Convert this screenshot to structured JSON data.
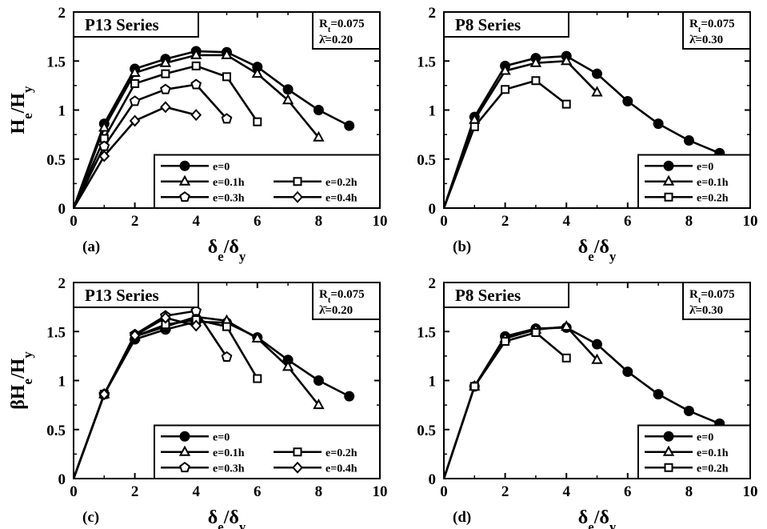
{
  "chart_data": [
    {
      "panel": "(a)",
      "type": "line",
      "title": "P13  Series",
      "params": {
        "rt": "0.075",
        "lambda": "0.20"
      },
      "xlabel": "δe/δy",
      "ylabel": "He/Hy",
      "xlim": [
        0,
        10
      ],
      "ylim": [
        0,
        2
      ],
      "x_ticks": [
        0,
        2,
        4,
        6,
        8,
        10
      ],
      "y_ticks": [
        0,
        0.5,
        1,
        1.5,
        2
      ],
      "legend": {
        "placement": "bottom-right",
        "columns": 2
      },
      "series": [
        {
          "name": "e=0",
          "marker": "circle",
          "fill": "filled",
          "x": [
            0,
            1,
            2,
            3,
            4,
            5,
            6,
            7,
            8,
            9
          ],
          "y": [
            0,
            0.86,
            1.42,
            1.52,
            1.6,
            1.59,
            1.44,
            1.21,
            1.0,
            0.84
          ]
        },
        {
          "name": "e=0.1h",
          "marker": "triangle",
          "fill": "open",
          "x": [
            0,
            1,
            2,
            3,
            4,
            5,
            6,
            7,
            8
          ],
          "y": [
            0,
            0.82,
            1.38,
            1.48,
            1.56,
            1.56,
            1.37,
            1.1,
            0.72
          ]
        },
        {
          "name": "e=0.2h",
          "marker": "square",
          "fill": "open",
          "x": [
            0,
            1,
            2,
            3,
            4,
            5,
            6
          ],
          "y": [
            0,
            0.71,
            1.27,
            1.37,
            1.45,
            1.34,
            0.88
          ]
        },
        {
          "name": "e=0.3h",
          "marker": "pentagon",
          "fill": "open",
          "x": [
            0,
            1,
            2,
            3,
            4,
            5
          ],
          "y": [
            0,
            0.63,
            1.09,
            1.21,
            1.26,
            0.91
          ]
        },
        {
          "name": "e=0.4h",
          "marker": "diamond",
          "fill": "open",
          "x": [
            0,
            1,
            2,
            3,
            4
          ],
          "y": [
            0,
            0.53,
            0.89,
            1.03,
            0.95
          ]
        }
      ]
    },
    {
      "panel": "(b)",
      "type": "line",
      "title": "P8  Series",
      "params": {
        "rt": "0.075",
        "lambda": "0.30"
      },
      "xlabel": "δe/δy",
      "ylabel": "",
      "xlim": [
        0,
        10
      ],
      "ylim": [
        0,
        2
      ],
      "x_ticks": [
        0,
        2,
        4,
        6,
        8,
        10
      ],
      "y_ticks": [
        0,
        0.5,
        1,
        1.5,
        2
      ],
      "legend": {
        "placement": "bottom-right",
        "columns": 1
      },
      "series": [
        {
          "name": "e=0",
          "marker": "circle",
          "fill": "filled",
          "x": [
            0,
            1,
            2,
            3,
            4,
            5,
            6,
            7,
            8,
            9
          ],
          "y": [
            0,
            0.93,
            1.45,
            1.53,
            1.55,
            1.37,
            1.09,
            0.86,
            0.69,
            0.56
          ]
        },
        {
          "name": "e=0.1h",
          "marker": "triangle",
          "fill": "open",
          "x": [
            0,
            1,
            2,
            3,
            4,
            5
          ],
          "y": [
            0,
            0.9,
            1.4,
            1.48,
            1.5,
            1.18
          ]
        },
        {
          "name": "e=0.2h",
          "marker": "square",
          "fill": "open",
          "x": [
            0,
            1,
            2,
            3,
            4
          ],
          "y": [
            0,
            0.83,
            1.21,
            1.3,
            1.06
          ]
        }
      ]
    },
    {
      "panel": "(c)",
      "type": "line",
      "title": "P13  Series",
      "params": {
        "rt": "0.075",
        "lambda": "0.20"
      },
      "xlabel": "δe/δy",
      "ylabel": "βHe/Hy",
      "xlim": [
        0,
        10
      ],
      "ylim": [
        0,
        2
      ],
      "x_ticks": [
        0,
        2,
        4,
        6,
        8,
        10
      ],
      "y_ticks": [
        0,
        0.5,
        1,
        1.5,
        2
      ],
      "legend": {
        "placement": "bottom-right",
        "columns": 2
      },
      "series": [
        {
          "name": "e=0",
          "marker": "circle",
          "fill": "filled",
          "x": [
            0,
            1,
            2,
            3,
            4,
            5,
            6,
            7,
            8,
            9
          ],
          "y": [
            0,
            0.86,
            1.42,
            1.52,
            1.6,
            1.59,
            1.44,
            1.21,
            1.0,
            0.84
          ]
        },
        {
          "name": "e=0.1h",
          "marker": "triangle",
          "fill": "open",
          "x": [
            0,
            1,
            2,
            3,
            4,
            5,
            6,
            7,
            8
          ],
          "y": [
            0,
            0.86,
            1.45,
            1.55,
            1.65,
            1.61,
            1.43,
            1.14,
            0.75
          ]
        },
        {
          "name": "e=0.2h",
          "marker": "square",
          "fill": "open",
          "x": [
            0,
            1,
            2,
            3,
            4,
            5,
            6
          ],
          "y": [
            0,
            0.86,
            1.45,
            1.57,
            1.62,
            1.55,
            1.02
          ]
        },
        {
          "name": "e=0.3h",
          "marker": "pentagon",
          "fill": "open",
          "x": [
            0,
            1,
            2,
            3,
            4,
            5
          ],
          "y": [
            0,
            0.86,
            1.47,
            1.66,
            1.71,
            1.24
          ]
        },
        {
          "name": "e=0.4h",
          "marker": "diamond",
          "fill": "open",
          "x": [
            0,
            1,
            2,
            3,
            4
          ],
          "y": [
            0,
            0.86,
            1.46,
            1.64,
            1.56
          ]
        }
      ]
    },
    {
      "panel": "(d)",
      "type": "line",
      "title": "P8  Series",
      "params": {
        "rt": "0.075",
        "lambda": "0.30"
      },
      "xlabel": "δe/δy",
      "ylabel": "",
      "xlim": [
        0,
        10
      ],
      "ylim": [
        0,
        2
      ],
      "x_ticks": [
        0,
        2,
        4,
        6,
        8,
        10
      ],
      "y_ticks": [
        0,
        0.5,
        1,
        1.5,
        2
      ],
      "legend": {
        "placement": "bottom-right",
        "columns": 1
      },
      "series": [
        {
          "name": "e=0",
          "marker": "circle",
          "fill": "filled",
          "x": [
            0,
            1,
            2,
            3,
            4,
            5,
            6,
            7,
            8,
            9
          ],
          "y": [
            0,
            0.94,
            1.45,
            1.53,
            1.54,
            1.37,
            1.09,
            0.86,
            0.69,
            0.56
          ]
        },
        {
          "name": "e=0.1h",
          "marker": "triangle",
          "fill": "open",
          "x": [
            0,
            1,
            2,
            3,
            4,
            5
          ],
          "y": [
            0,
            0.94,
            1.43,
            1.52,
            1.55,
            1.21
          ]
        },
        {
          "name": "e=0.2h",
          "marker": "square",
          "fill": "open",
          "x": [
            0,
            1,
            2,
            3,
            4
          ],
          "y": [
            0,
            0.94,
            1.4,
            1.49,
            1.23
          ]
        }
      ]
    }
  ]
}
